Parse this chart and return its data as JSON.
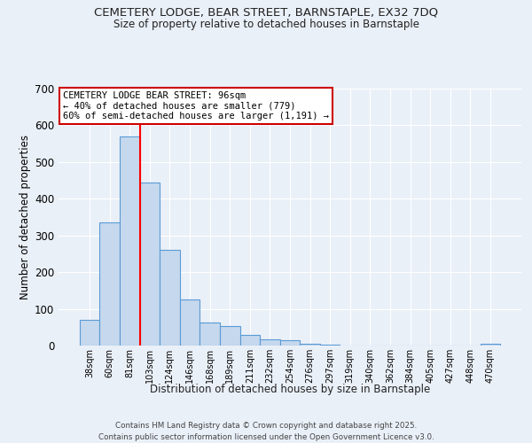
{
  "title_line1": "CEMETERY LODGE, BEAR STREET, BARNSTAPLE, EX32 7DQ",
  "title_line2": "Size of property relative to detached houses in Barnstaple",
  "xlabel": "Distribution of detached houses by size in Barnstaple",
  "ylabel": "Number of detached properties",
  "categories": [
    "38sqm",
    "60sqm",
    "81sqm",
    "103sqm",
    "124sqm",
    "146sqm",
    "168sqm",
    "189sqm",
    "211sqm",
    "232sqm",
    "254sqm",
    "276sqm",
    "297sqm",
    "319sqm",
    "340sqm",
    "362sqm",
    "384sqm",
    "405sqm",
    "427sqm",
    "448sqm",
    "470sqm"
  ],
  "values": [
    70,
    335,
    570,
    445,
    260,
    125,
    62,
    52,
    30,
    18,
    15,
    5,
    3,
    1,
    1,
    0,
    0,
    0,
    0,
    0,
    5
  ],
  "bar_color": "#c5d8ed",
  "bar_edge_color": "#5b9bd5",
  "red_line_x": 2.5,
  "annotation_text": "CEMETERY LODGE BEAR STREET: 96sqm\n← 40% of detached houses are smaller (779)\n60% of semi-detached houses are larger (1,191) →",
  "annotation_box_color": "#ffffff",
  "annotation_border_color": "#cc0000",
  "background_color": "#eaf0f8",
  "grid_color": "#ffffff",
  "footer_line1": "Contains HM Land Registry data © Crown copyright and database right 2025.",
  "footer_line2": "Contains public sector information licensed under the Open Government Licence v3.0.",
  "ylim": [
    0,
    700
  ],
  "yticks": [
    0,
    100,
    200,
    300,
    400,
    500,
    600,
    700
  ]
}
